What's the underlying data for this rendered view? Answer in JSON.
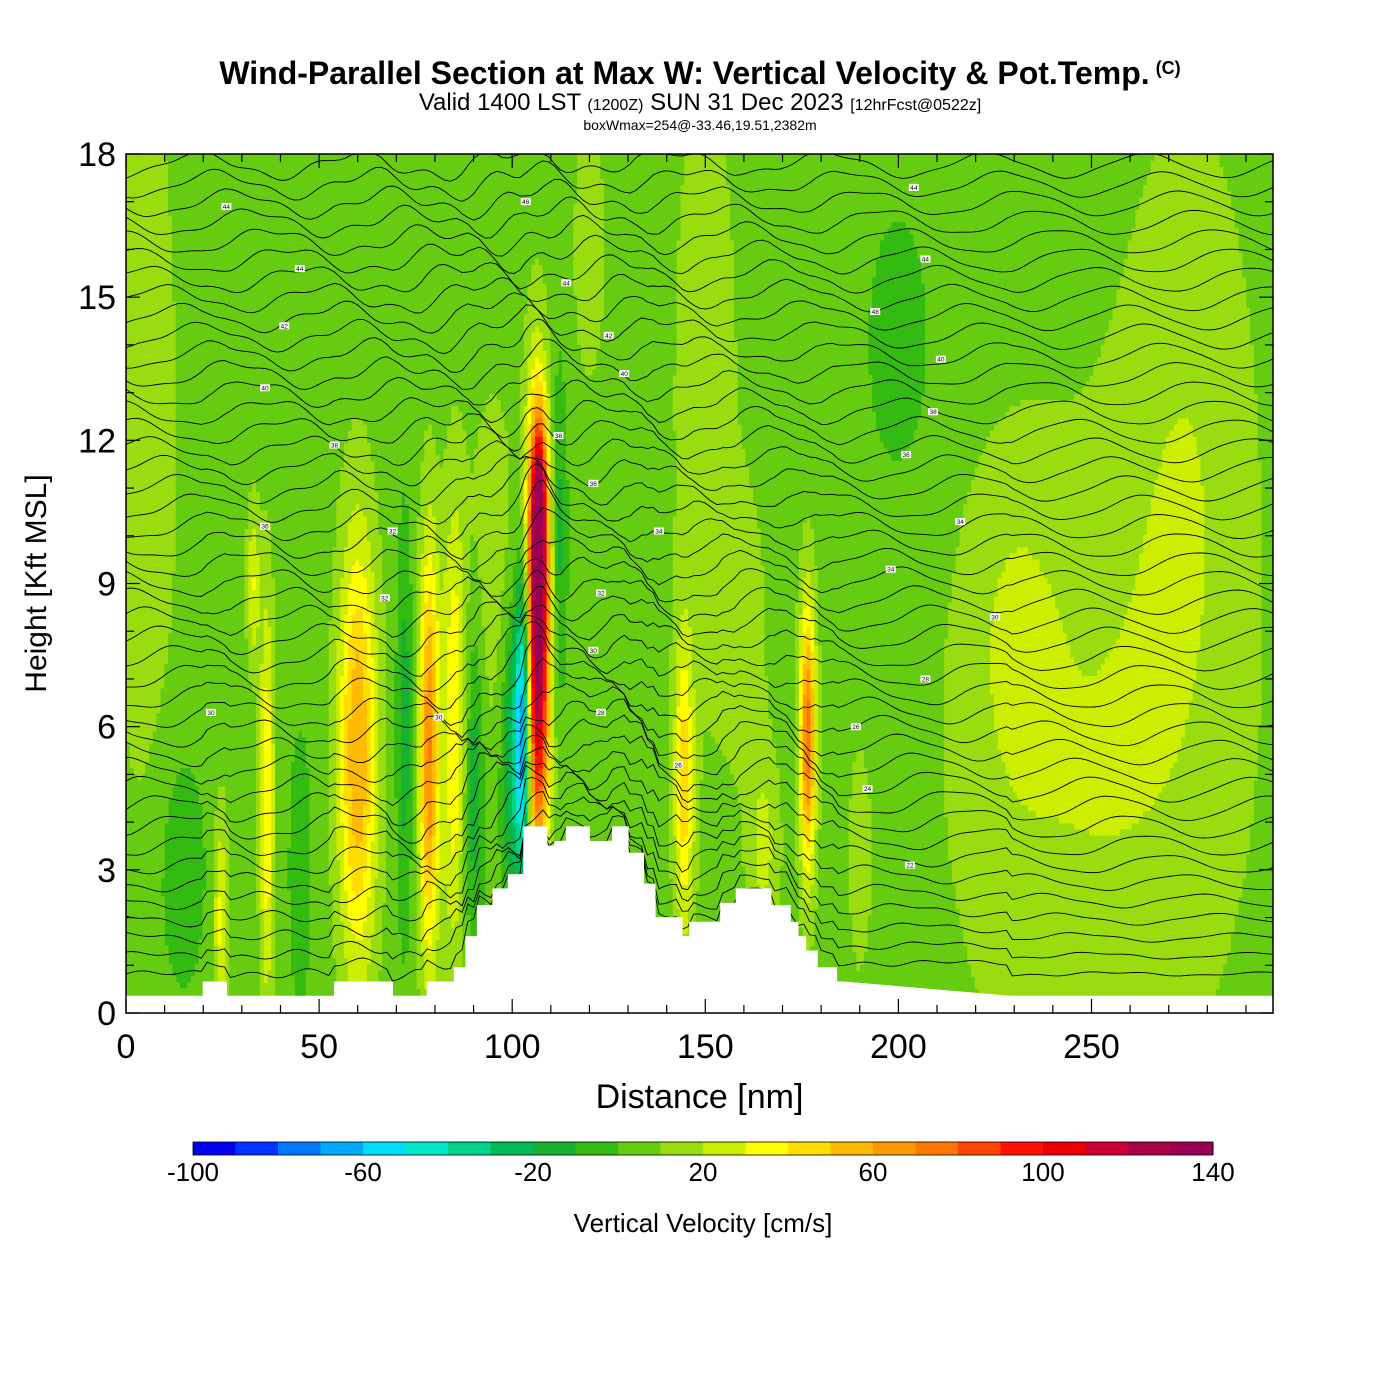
{
  "header": {
    "title": "Wind-Parallel Section at Max W: Vertical Velocity & Pot.Temp.",
    "copyright": "(C)",
    "valid_time_a": "Valid 1400 LST",
    "valid_time_b": "(1200Z)",
    "valid_time_c": "SUN 31 Dec 2023",
    "forecast": "[12hrFcst@0522z]",
    "box_wmax": "boxWmax=254@-33.46,19.51,2382m"
  },
  "chart_data": {
    "type": "heatmap",
    "title": "Wind-Parallel Section at Max W: Vertical Velocity & Pot.Temp.",
    "xlabel": "Distance [nm]",
    "ylabel": "Height [Kft MSL]",
    "xlim": [
      0,
      297
    ],
    "ylim": [
      0,
      18
    ],
    "x_ticks": [
      "0",
      "50",
      "100",
      "150",
      "200",
      "250"
    ],
    "x_tick_values": [
      0,
      50,
      100,
      150,
      200,
      250
    ],
    "y_ticks": [
      "0",
      "3",
      "6",
      "9",
      "12",
      "15",
      "18"
    ],
    "y_tick_values": [
      0,
      3,
      6,
      9,
      12,
      15,
      18
    ],
    "colorbar": {
      "label": "Vertical Velocity [cm/s]",
      "bounds": [
        -100,
        -90,
        -80,
        -70,
        -60,
        -50,
        -40,
        -30,
        -20,
        -10,
        0,
        10,
        20,
        30,
        40,
        50,
        60,
        70,
        80,
        90,
        100,
        110,
        120,
        130,
        140
      ],
      "tick_labels": [
        "-100",
        "-60",
        "-20",
        "20",
        "60",
        "100",
        "140"
      ],
      "tick_values": [
        -100,
        -60,
        -20,
        20,
        60,
        100,
        140
      ],
      "colors": [
        "#0000ee",
        "#0033ff",
        "#0077ff",
        "#00aaff",
        "#00ddff",
        "#00e8cc",
        "#00d28c",
        "#00bb55",
        "#16b033",
        "#33bb11",
        "#66cc11",
        "#99dd11",
        "#ccee00",
        "#ffff00",
        "#ffdd00",
        "#ffbb00",
        "#ff9900",
        "#ff7700",
        "#ff4400",
        "#ff1100",
        "#ee0000",
        "#cc0033",
        "#aa0044",
        "#990055"
      ]
    },
    "base_color": "#33bb11",
    "terrain_color": "#ffffff",
    "contour_color": "#000000",
    "terrain": {
      "x": [
        0,
        20,
        20,
        26,
        26,
        54,
        54,
        69,
        69,
        78,
        78,
        85,
        85,
        88,
        88,
        91,
        91,
        95,
        95,
        99,
        99,
        103,
        103,
        109,
        109,
        111,
        111,
        114,
        114,
        120,
        120,
        126,
        126,
        130,
        130,
        134,
        134,
        137,
        137,
        144,
        144,
        146,
        146,
        154,
        154,
        158,
        158,
        167,
        167,
        172,
        172,
        174,
        174,
        176,
        176,
        179,
        179,
        184,
        184,
        186,
        186,
        229,
        229,
        297
      ],
      "y": [
        0.35,
        0.35,
        0.65,
        0.65,
        0.35,
        0.35,
        0.65,
        0.65,
        0.35,
        0.35,
        0.65,
        0.65,
        0.95,
        0.95,
        1.6,
        1.6,
        2.25,
        2.25,
        2.6,
        2.6,
        2.9,
        2.9,
        3.9,
        3.9,
        3.5,
        3.5,
        3.6,
        3.6,
        3.9,
        3.9,
        3.6,
        3.6,
        3.9,
        3.9,
        3.35,
        3.35,
        2.7,
        2.7,
        2.0,
        2.0,
        1.6,
        1.6,
        1.9,
        1.9,
        2.3,
        2.3,
        2.6,
        2.6,
        2.25,
        2.25,
        1.9,
        1.9,
        1.6,
        1.6,
        1.3,
        1.3,
        0.95,
        0.95,
        0.65,
        0.65,
        0.65,
        0.35,
        0.35,
        0.35
      ]
    },
    "w_features": [
      {
        "x": 106.5,
        "z": 7.8,
        "wx": 2.2,
        "wz": 3.1,
        "w": 135
      },
      {
        "x": 107,
        "z": 10.6,
        "wx": 1.4,
        "wz": 1.3,
        "w": 70
      },
      {
        "x": 103,
        "z": 6.3,
        "wx": 1.4,
        "wz": 2.3,
        "w": -75
      },
      {
        "x": 100.5,
        "z": 5.4,
        "wx": 2.5,
        "wz": 2.3,
        "w": -35
      },
      {
        "x": 60,
        "z": 5.5,
        "wx": 3.5,
        "wz": 3.2,
        "w": 55
      },
      {
        "x": 78.5,
        "z": 5.5,
        "wx": 1.8,
        "wz": 3.0,
        "w": 65
      },
      {
        "x": 85,
        "z": 6.0,
        "wx": 2.2,
        "wz": 3.3,
        "w": 35
      },
      {
        "x": 90,
        "z": 5.0,
        "wx": 2.0,
        "wz": 2.5,
        "w": -25
      },
      {
        "x": 72,
        "z": 6.0,
        "wx": 1.5,
        "wz": 3.0,
        "w": -20
      },
      {
        "x": 36.5,
        "z": 4.5,
        "wx": 1.3,
        "wz": 3.0,
        "w": 35
      },
      {
        "x": 24.5,
        "z": 2.0,
        "wx": 1.3,
        "wz": 1.6,
        "w": 28
      },
      {
        "x": 144.5,
        "z": 4.8,
        "wx": 1.8,
        "wz": 2.2,
        "w": 40
      },
      {
        "x": 176.5,
        "z": 5.8,
        "wx": 1.5,
        "wz": 2.0,
        "w": 70
      },
      {
        "x": 165,
        "z": 3.5,
        "wx": 3.0,
        "wz": 1.5,
        "w": 18
      },
      {
        "x": 190,
        "z": 3.2,
        "wx": 2.0,
        "wz": 1.6,
        "w": 12
      },
      {
        "x": 112,
        "z": 10.0,
        "wx": 1.5,
        "wz": 2.5,
        "w": -20
      },
      {
        "x": 33,
        "z": 9.0,
        "wx": 1.2,
        "wz": 1.2,
        "w": 25
      },
      {
        "x": 95,
        "z": 9.0,
        "wx": 5.0,
        "wz": 3.0,
        "w": 12
      },
      {
        "x": 150,
        "z": 13.0,
        "wx": 6.0,
        "wz": 5.0,
        "w": 12
      },
      {
        "x": 250,
        "z": 5.0,
        "wx": 25,
        "wz": 5.0,
        "w": 15
      },
      {
        "x": 275,
        "z": 12.0,
        "wx": 12,
        "wz": 5.0,
        "w": 12
      },
      {
        "x": 230,
        "z": 8.0,
        "wx": 8.0,
        "wz": 2.5,
        "w": 10
      },
      {
        "x": 5,
        "z": 12.0,
        "wx": 6.0,
        "wz": 6.0,
        "w": 12
      },
      {
        "x": 120,
        "z": 16.0,
        "wx": 3.0,
        "wz": 2.0,
        "w": 12
      },
      {
        "x": 160,
        "z": 8.0,
        "wx": 4.0,
        "wz": 2.0,
        "w": 12
      },
      {
        "x": 14,
        "z": 3.0,
        "wx": 5.0,
        "wz": 2.0,
        "w": -12
      },
      {
        "x": 45,
        "z": 3.0,
        "wx": 2.0,
        "wz": 2.0,
        "w": -15
      },
      {
        "x": 200,
        "z": 14.0,
        "wx": 6.0,
        "wz": 2.0,
        "w": -12
      }
    ],
    "contour_labels": [
      {
        "text": "44",
        "x": 26,
        "z": 16.9
      },
      {
        "text": "46",
        "x": 103.5,
        "z": 17.0
      },
      {
        "text": "44",
        "x": 204,
        "z": 17.3
      },
      {
        "text": "44",
        "x": 45,
        "z": 15.6
      },
      {
        "text": "44",
        "x": 114,
        "z": 15.3
      },
      {
        "text": "44",
        "x": 207,
        "z": 15.8
      },
      {
        "text": "42",
        "x": 41,
        "z": 14.4
      },
      {
        "text": "42",
        "x": 125,
        "z": 14.2
      },
      {
        "text": "48",
        "x": 194,
        "z": 14.7
      },
      {
        "text": "40",
        "x": 36,
        "z": 13.1
      },
      {
        "text": "40",
        "x": 129,
        "z": 13.4
      },
      {
        "text": "40",
        "x": 211,
        "z": 13.7
      },
      {
        "text": "38",
        "x": 54,
        "z": 11.9
      },
      {
        "text": "38",
        "x": 112,
        "z": 12.1
      },
      {
        "text": "38",
        "x": 209,
        "z": 12.6
      },
      {
        "text": "36",
        "x": 121,
        "z": 11.1
      },
      {
        "text": "36",
        "x": 202,
        "z": 11.7
      },
      {
        "text": "36",
        "x": 36,
        "z": 10.2
      },
      {
        "text": "34",
        "x": 138,
        "z": 10.1
      },
      {
        "text": "34",
        "x": 216,
        "z": 10.3
      },
      {
        "text": "32",
        "x": 69,
        "z": 10.1
      },
      {
        "text": "34",
        "x": 198,
        "z": 9.3
      },
      {
        "text": "32",
        "x": 67,
        "z": 8.7
      },
      {
        "text": "32",
        "x": 123,
        "z": 8.8
      },
      {
        "text": "30",
        "x": 225,
        "z": 8.3
      },
      {
        "text": "30",
        "x": 121,
        "z": 7.6
      },
      {
        "text": "28",
        "x": 207,
        "z": 7.0
      },
      {
        "text": "30",
        "x": 22,
        "z": 6.3
      },
      {
        "text": "30",
        "x": 81,
        "z": 6.2
      },
      {
        "text": "28",
        "x": 123,
        "z": 6.3
      },
      {
        "text": "26",
        "x": 189,
        "z": 6.0
      },
      {
        "text": "26",
        "x": 143,
        "z": 5.2
      },
      {
        "text": "24",
        "x": 192,
        "z": 4.7
      },
      {
        "text": "22",
        "x": 203,
        "z": 3.1
      }
    ]
  }
}
